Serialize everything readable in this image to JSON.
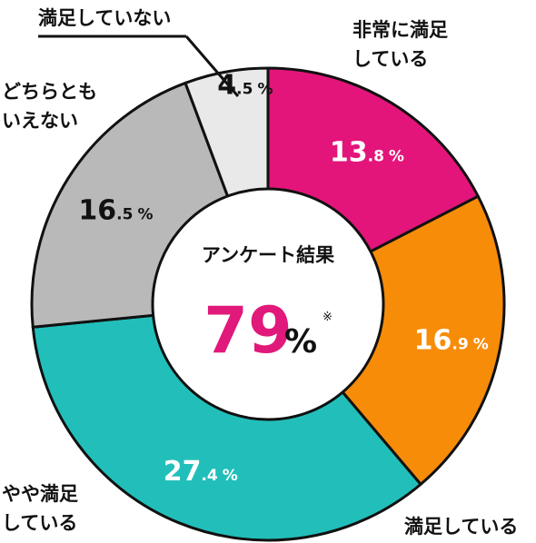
{
  "chart_data": {
    "type": "pie",
    "title": "",
    "center": {
      "title": "アンケート結果",
      "value": "79",
      "unit": "%",
      "note": "※",
      "value_color": "#e0197a"
    },
    "categories": [
      "非常に満足している",
      "満足している",
      "やや満足している",
      "どちらともいえない",
      "満足していない"
    ],
    "values": [
      13.8,
      16.9,
      27.4,
      16.5,
      4.5
    ],
    "value_labels": [
      {
        "int": "13",
        "dec": ".8",
        "unit": "%"
      },
      {
        "int": "16",
        "dec": ".9",
        "unit": "%"
      },
      {
        "int": "27",
        "dec": ".4",
        "unit": "%"
      },
      {
        "int": "16",
        "dec": ".5",
        "unit": "%"
      },
      {
        "int": "4",
        "dec": ".5",
        "unit": "%"
      }
    ],
    "label_lines": [
      [
        "非常に満足",
        "している"
      ],
      [
        "満足している"
      ],
      [
        "やや満足",
        "している"
      ],
      [
        "どちらとも",
        "いえない"
      ],
      [
        "満足していない"
      ]
    ],
    "colors": [
      "#e3157a",
      "#f78c09",
      "#22bfba",
      "#b9b9b9",
      "#e9e9e9"
    ],
    "value_text_colors": [
      "#ffffff",
      "#ffffff",
      "#ffffff",
      "#111111",
      "#111111"
    ]
  }
}
